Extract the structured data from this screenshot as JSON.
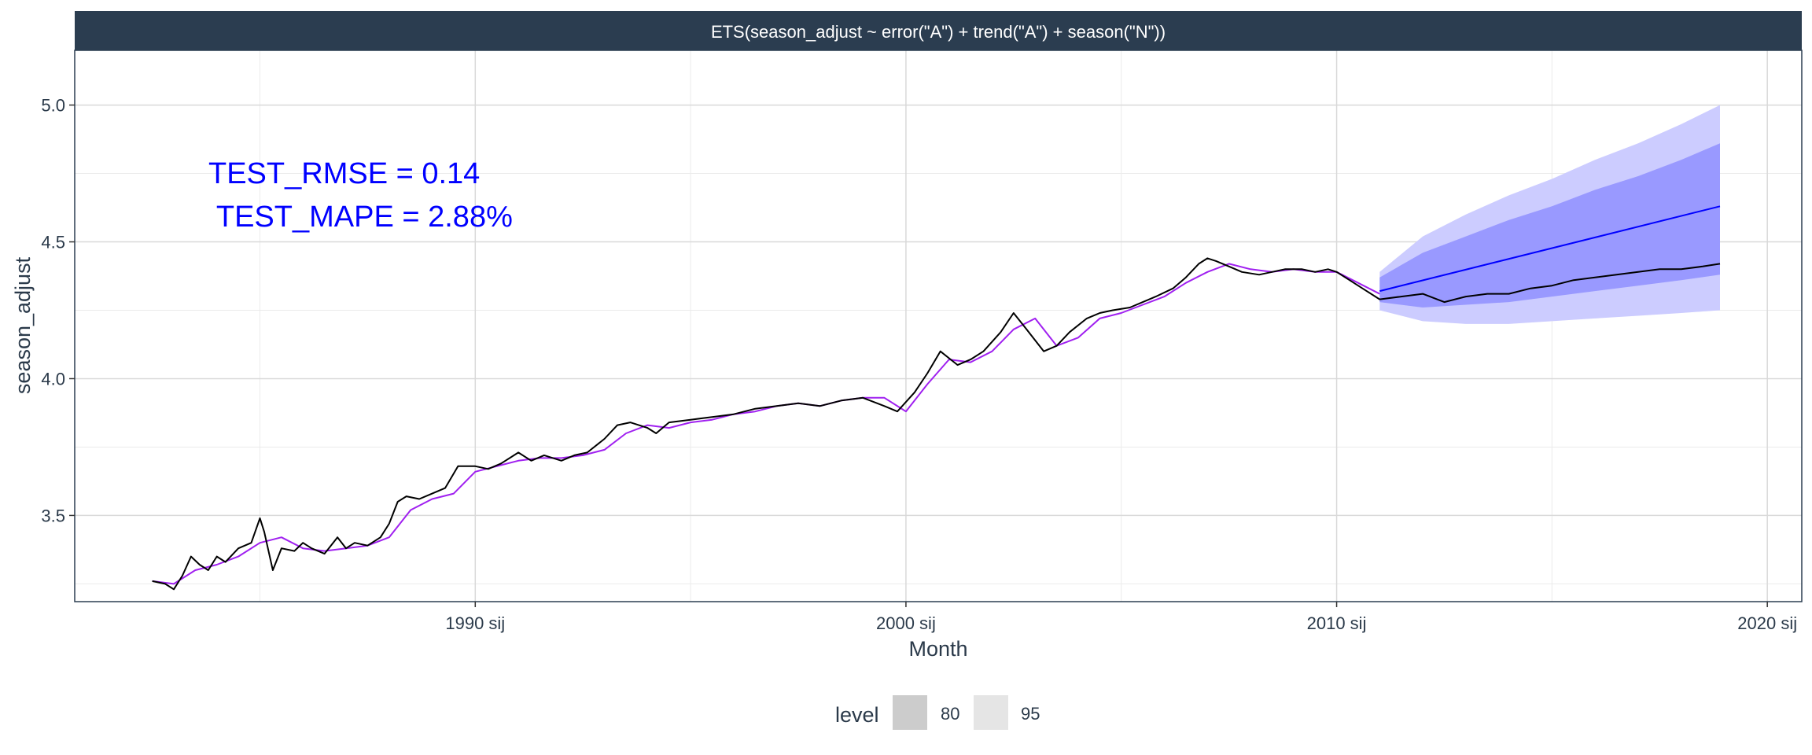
{
  "chart_data": {
    "type": "line",
    "facet_title": "ETS(season_adjust ~ error(\"A\") + trend(\"A\") + season(\"N\"))",
    "xlabel": "Month",
    "ylabel": "season_adjust",
    "xlim": [
      1980.7,
      2020.8
    ],
    "ylim": [
      3.185,
      5.2
    ],
    "x_ticks": [
      1990,
      2000,
      2010,
      2020
    ],
    "x_tick_labels": [
      "1990 sij",
      "2000 sij",
      "2010 sij",
      "2020 sij"
    ],
    "y_ticks": [
      3.5,
      4.0,
      4.5,
      5.0
    ],
    "y_tick_labels": [
      "3.5",
      "4.0",
      "4.5",
      "5.0"
    ],
    "grid": true,
    "annotations": [
      {
        "text": "TEST_RMSE = 0.14"
      },
      {
        "text": " TEST_MAPE = 2.88%"
      }
    ],
    "legend": {
      "position": "bottom",
      "title": "level",
      "items": [
        {
          "label": "80",
          "color": "#cccccc"
        },
        {
          "label": "95",
          "color": "#e5e5e5"
        }
      ]
    },
    "colors": {
      "actual": "#000000",
      "fitted": "#a020f0",
      "forecast": "#0000ff",
      "band80": "#9999ff",
      "band95": "#ccccff",
      "strip": "#2b3d50"
    },
    "series": [
      {
        "key": "actual",
        "x": [
          1982.5,
          1982.8,
          1983.0,
          1983.2,
          1983.4,
          1983.6,
          1983.8,
          1984.0,
          1984.2,
          1984.5,
          1984.8,
          1985.0,
          1985.1,
          1985.3,
          1985.5,
          1985.8,
          1986.0,
          1986.2,
          1986.5,
          1986.8,
          1987.0,
          1987.2,
          1987.5,
          1987.8,
          1988.0,
          1988.2,
          1988.4,
          1988.7,
          1989.0,
          1989.3,
          1989.6,
          1990.0,
          1990.3,
          1990.6,
          1991.0,
          1991.3,
          1991.6,
          1992.0,
          1992.3,
          1992.6,
          1993.0,
          1993.3,
          1993.6,
          1994.0,
          1994.2,
          1994.5,
          1995.0,
          1995.5,
          1996.0,
          1996.5,
          1997.0,
          1997.5,
          1998.0,
          1998.5,
          1999.0,
          1999.5,
          1999.8,
          2000.2,
          2000.5,
          2000.8,
          2001.2,
          2001.5,
          2001.8,
          2002.2,
          2002.5,
          2002.8,
          2003.2,
          2003.5,
          2003.8,
          2004.2,
          2004.5,
          2004.8,
          2005.2,
          2005.5,
          2005.8,
          2006.2,
          2006.5,
          2006.8,
          2007.0,
          2007.2,
          2007.5,
          2007.8,
          2008.2,
          2008.5,
          2008.8,
          2009.2,
          2009.5,
          2009.8,
          2010.0,
          2010.3,
          2010.6,
          2011.0,
          2011.5,
          2012.0,
          2012.5,
          2013.0,
          2013.5,
          2014.0,
          2014.5,
          2015.0,
          2015.5,
          2016.0,
          2016.5,
          2017.0,
          2017.5,
          2018.0,
          2018.5,
          2018.9
        ],
        "y": [
          3.26,
          3.25,
          3.23,
          3.28,
          3.35,
          3.32,
          3.3,
          3.35,
          3.33,
          3.38,
          3.4,
          3.49,
          3.44,
          3.3,
          3.38,
          3.37,
          3.4,
          3.38,
          3.36,
          3.42,
          3.38,
          3.4,
          3.39,
          3.42,
          3.47,
          3.55,
          3.57,
          3.56,
          3.58,
          3.6,
          3.68,
          3.68,
          3.67,
          3.69,
          3.73,
          3.7,
          3.72,
          3.7,
          3.72,
          3.73,
          3.78,
          3.83,
          3.84,
          3.82,
          3.8,
          3.84,
          3.85,
          3.86,
          3.87,
          3.89,
          3.9,
          3.91,
          3.9,
          3.92,
          3.93,
          3.9,
          3.88,
          3.95,
          4.02,
          4.1,
          4.05,
          4.07,
          4.1,
          4.17,
          4.24,
          4.18,
          4.1,
          4.12,
          4.17,
          4.22,
          4.24,
          4.25,
          4.26,
          4.28,
          4.3,
          4.33,
          4.37,
          4.42,
          4.44,
          4.43,
          4.41,
          4.39,
          4.38,
          4.39,
          4.4,
          4.4,
          4.39,
          4.4,
          4.39,
          4.36,
          4.33,
          4.29,
          4.3,
          4.31,
          4.28,
          4.3,
          4.31,
          4.31,
          4.33,
          4.34,
          4.36,
          4.37,
          4.38,
          4.39,
          4.4,
          4.4,
          4.41,
          4.42
        ]
      },
      {
        "key": "fitted",
        "x": [
          1982.5,
          1983.0,
          1983.5,
          1984.0,
          1984.5,
          1985.0,
          1985.5,
          1986.0,
          1986.5,
          1987.0,
          1987.5,
          1988.0,
          1988.5,
          1989.0,
          1989.5,
          1990.0,
          1990.5,
          1991.0,
          1991.5,
          1992.0,
          1992.5,
          1993.0,
          1993.5,
          1994.0,
          1994.5,
          1995.0,
          1995.5,
          1996.0,
          1996.5,
          1997.0,
          1997.5,
          1998.0,
          1998.5,
          1999.0,
          1999.5,
          2000.0,
          2000.5,
          2001.0,
          2001.5,
          2002.0,
          2002.5,
          2003.0,
          2003.5,
          2004.0,
          2004.5,
          2005.0,
          2005.5,
          2006.0,
          2006.5,
          2007.0,
          2007.5,
          2008.0,
          2008.5,
          2009.0,
          2009.5,
          2010.0,
          2010.5,
          2011.0
        ],
        "y": [
          3.26,
          3.25,
          3.3,
          3.32,
          3.35,
          3.4,
          3.42,
          3.38,
          3.37,
          3.38,
          3.39,
          3.42,
          3.52,
          3.56,
          3.58,
          3.66,
          3.68,
          3.7,
          3.71,
          3.71,
          3.72,
          3.74,
          3.8,
          3.83,
          3.82,
          3.84,
          3.85,
          3.87,
          3.88,
          3.9,
          3.91,
          3.9,
          3.92,
          3.93,
          3.93,
          3.88,
          3.98,
          4.07,
          4.06,
          4.1,
          4.18,
          4.22,
          4.12,
          4.15,
          4.22,
          4.24,
          4.27,
          4.3,
          4.35,
          4.39,
          4.42,
          4.4,
          4.39,
          4.4,
          4.39,
          4.39,
          4.35,
          4.31
        ]
      },
      {
        "key": "forecast",
        "x": [
          2011.0,
          2018.9
        ],
        "y": [
          4.32,
          4.63
        ]
      }
    ],
    "band95": {
      "x": [
        2011.0,
        2012.0,
        2013.0,
        2014.0,
        2015.0,
        2016.0,
        2017.0,
        2018.0,
        2018.9
      ],
      "upper": [
        4.39,
        4.52,
        4.6,
        4.67,
        4.73,
        4.8,
        4.86,
        4.93,
        5.0
      ],
      "lower": [
        4.25,
        4.21,
        4.2,
        4.2,
        4.21,
        4.22,
        4.23,
        4.24,
        4.25
      ]
    },
    "band80": {
      "x": [
        2011.0,
        2012.0,
        2013.0,
        2014.0,
        2015.0,
        2016.0,
        2017.0,
        2018.0,
        2018.9
      ],
      "upper": [
        4.37,
        4.46,
        4.52,
        4.58,
        4.63,
        4.69,
        4.74,
        4.8,
        4.86
      ],
      "lower": [
        4.28,
        4.26,
        4.27,
        4.28,
        4.3,
        4.32,
        4.34,
        4.36,
        4.38
      ]
    }
  }
}
